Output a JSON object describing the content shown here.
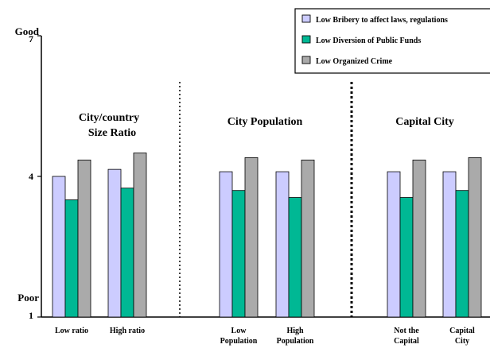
{
  "chart_data": {
    "type": "bar",
    "title": "",
    "xlabel": "",
    "ylabel": "",
    "ylim": [
      1,
      7
    ],
    "yticks": [
      {
        "value": 7,
        "label": "7",
        "word": "Good"
      },
      {
        "value": 4,
        "label": "4",
        "word": ""
      },
      {
        "value": 1,
        "label": "1",
        "word": "Poor"
      }
    ],
    "groups": [
      {
        "title": "City/country Size Ratio",
        "categories": [
          "Low ratio",
          "High ratio"
        ]
      },
      {
        "title": "City Population",
        "categories": [
          "Low Population",
          "High Population"
        ]
      },
      {
        "title": "Capital City",
        "categories": [
          "Not the Capital",
          "Capital City"
        ]
      }
    ],
    "categories": [
      "Low ratio",
      "High ratio",
      "Low Population",
      "High Population",
      "Not the Capital",
      "Capital City"
    ],
    "series": [
      {
        "name": "Low Bribery to affect laws, regulations",
        "color": "#ccccff",
        "values": [
          4.0,
          4.15,
          4.1,
          4.1,
          4.1,
          4.1
        ]
      },
      {
        "name": "Low Diversion of Public Funds",
        "color": "#00b894",
        "values": [
          3.5,
          3.75,
          3.7,
          3.55,
          3.55,
          3.7
        ]
      },
      {
        "name": "Low Organized Crime",
        "color": "#aaaaaa",
        "values": [
          4.35,
          4.5,
          4.4,
          4.35,
          4.35,
          4.4
        ]
      }
    ],
    "grid": false,
    "legend_position": "top-right"
  }
}
